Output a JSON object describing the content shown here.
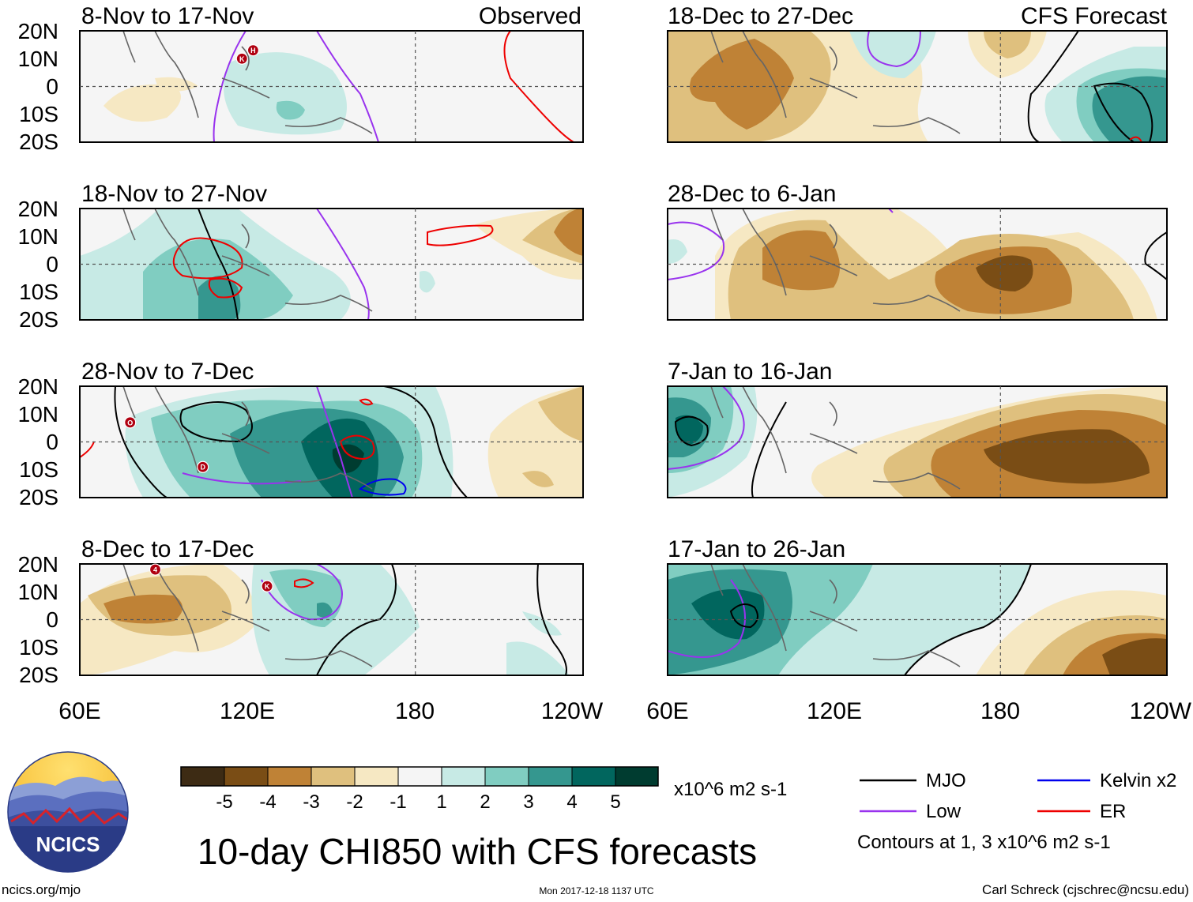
{
  "colors": {
    "brown5": "#3d2b14",
    "brown4": "#7a4d15",
    "brown3": "#bf8236",
    "brown2": "#dfc07e",
    "brown1": "#f6e8c3",
    "neutral": "#f5f5f5",
    "teal1": "#c7eae5",
    "teal2": "#80cdc1",
    "teal3": "#35978f",
    "teal4": "#01665e",
    "teal5": "#003c30",
    "mjo": "#000000",
    "low": "#9933ee",
    "kelvin": "#0000ee",
    "er": "#ee0000",
    "coast": "#666666"
  },
  "axes": {
    "lat_labels": [
      "20N",
      "10N",
      "0",
      "10S",
      "20S"
    ],
    "lon_labels": [
      "60E",
      "120E",
      "180",
      "120W"
    ]
  },
  "panels": [
    {
      "id": "p1",
      "column": "observed",
      "period": "8-Nov to 17-Nov",
      "tag": "Observed"
    },
    {
      "id": "p2",
      "column": "observed",
      "period": "18-Nov to 27-Nov"
    },
    {
      "id": "p3",
      "column": "observed",
      "period": "28-Nov to 7-Dec"
    },
    {
      "id": "p4",
      "column": "observed",
      "period": "8-Dec to 17-Dec"
    },
    {
      "id": "p5",
      "column": "forecast",
      "period": "18-Dec to 27-Dec",
      "tag": "CFS Forecast"
    },
    {
      "id": "p6",
      "column": "forecast",
      "period": "28-Dec to 6-Jan"
    },
    {
      "id": "p7",
      "column": "forecast",
      "period": "7-Jan to 16-Jan"
    },
    {
      "id": "p8",
      "column": "forecast",
      "period": "17-Jan to 26-Jan"
    }
  ],
  "storms": [
    {
      "panel": "p1",
      "label": "K",
      "lon": 118,
      "lat": 10
    },
    {
      "panel": "p1",
      "label": "H",
      "lon": 122,
      "lat": 13
    },
    {
      "panel": "p3",
      "label": "O",
      "lon": 78,
      "lat": 7
    },
    {
      "panel": "p3",
      "label": "D",
      "lon": 104,
      "lat": -9
    },
    {
      "panel": "p4",
      "label": "4",
      "lon": 87,
      "lat": 18
    },
    {
      "panel": "p4",
      "label": "K",
      "lon": 127,
      "lat": 12
    }
  ],
  "colorbar": {
    "ticks": [
      "-5",
      "-4",
      "-3",
      "-2",
      "-1",
      "1",
      "2",
      "3",
      "4",
      "5"
    ],
    "units": "x10^6 m2 s-1"
  },
  "legend": {
    "mjo": "MJO",
    "low": "Low",
    "kelvin": "Kelvin x2",
    "er": "ER",
    "contours_note": "Contours at 1, 3 x10^6 m2 s-1"
  },
  "logo": {
    "text": "NCICS"
  },
  "main_title": "10-day CHI850 with CFS forecasts",
  "footer": {
    "site": "ncics.org/mjo",
    "timestamp": "Mon 2017-12-18 1137 UTC",
    "author": "Carl Schreck (cjschrec@ncsu.edu)"
  }
}
